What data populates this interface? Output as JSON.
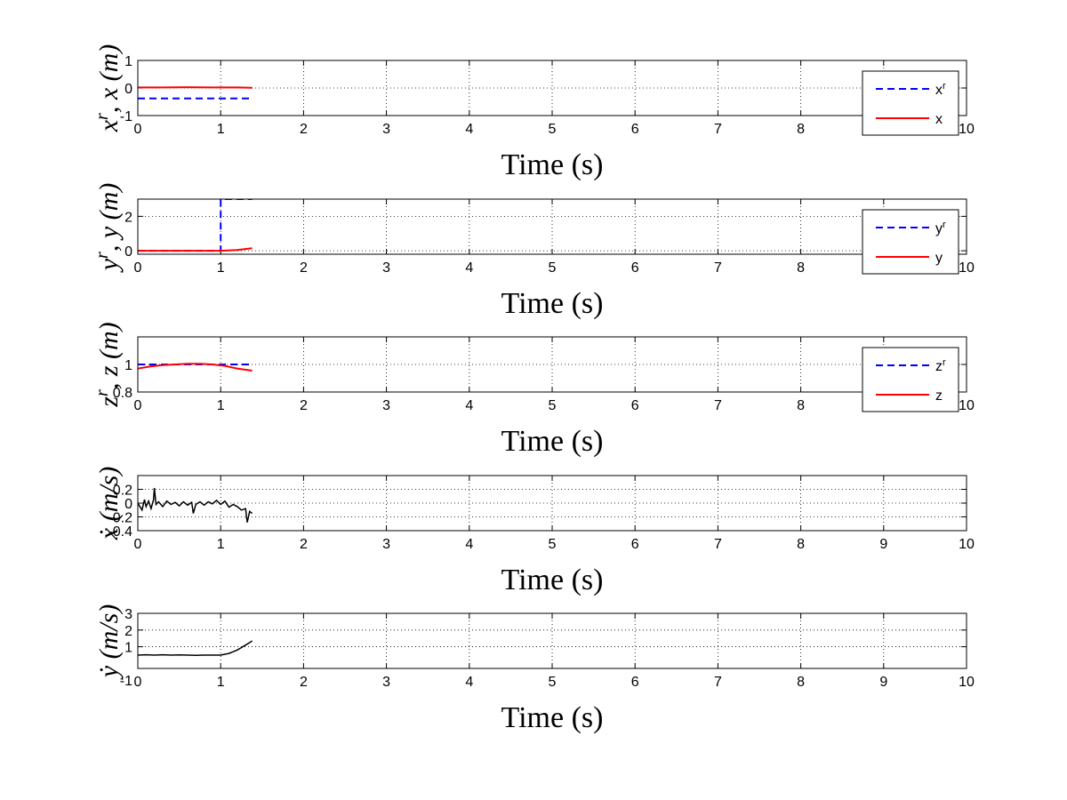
{
  "chart_data": [
    {
      "type": "line",
      "xlabel": "Time (s)",
      "ylabel": "x^r, x (m)",
      "xlim": [
        0,
        10
      ],
      "ylim": [
        -1,
        1
      ],
      "xticks": [
        "0",
        "1",
        "2",
        "3",
        "4",
        "5",
        "6",
        "7",
        "8",
        "9",
        "10"
      ],
      "yticks": [
        "-1",
        "0",
        "1"
      ],
      "grid": true,
      "legend": "top-right",
      "series": [
        {
          "name": "x^r",
          "color": "#0000ff",
          "dash": "dashed",
          "x": [
            0,
            1.38
          ],
          "y": [
            -0.38,
            -0.38
          ]
        },
        {
          "name": "x",
          "color": "#ff0000",
          "dash": "solid",
          "x": [
            0,
            0.3,
            0.6,
            0.9,
            1.2,
            1.38
          ],
          "y": [
            0.02,
            0.02,
            0.03,
            0.02,
            0.02,
            0.01
          ]
        }
      ]
    },
    {
      "type": "line",
      "xlabel": "Time (s)",
      "ylabel": "y^r, y (m)",
      "xlim": [
        0,
        10
      ],
      "ylim": [
        -0.2,
        3
      ],
      "xticks": [
        "0",
        "1",
        "2",
        "3",
        "4",
        "5",
        "6",
        "7",
        "8",
        "9",
        "10"
      ],
      "yticks": [
        "0",
        "2"
      ],
      "grid": true,
      "legend": "top-right",
      "series": [
        {
          "name": "y^r",
          "color": "#0000ff",
          "dash": "dashed",
          "x": [
            0,
            1.0,
            1.0,
            1.38
          ],
          "y": [
            0,
            0,
            3,
            3
          ]
        },
        {
          "name": "y",
          "color": "#ff0000",
          "dash": "solid",
          "x": [
            0,
            0.5,
            1.0,
            1.2,
            1.38
          ],
          "y": [
            0,
            0,
            0,
            0.05,
            0.15
          ]
        }
      ]
    },
    {
      "type": "line",
      "xlabel": "Time (s)",
      "ylabel": "z^r, z (m)",
      "xlim": [
        0,
        10
      ],
      "ylim": [
        0.8,
        1.2
      ],
      "xticks": [
        "0",
        "1",
        "2",
        "3",
        "4",
        "5",
        "6",
        "7",
        "8",
        "9",
        "10"
      ],
      "yticks": [
        "0.8",
        "1"
      ],
      "grid": true,
      "legend": "top-right",
      "series": [
        {
          "name": "z^r",
          "color": "#0000ff",
          "dash": "dashed",
          "x": [
            0,
            1.38
          ],
          "y": [
            1.0,
            1.0
          ]
        },
        {
          "name": "z",
          "color": "#ff0000",
          "dash": "solid",
          "x": [
            0,
            0.15,
            0.3,
            0.45,
            0.6,
            0.75,
            0.9,
            1.05,
            1.2,
            1.38
          ],
          "y": [
            0.97,
            0.985,
            0.995,
            1.0,
            1.005,
            1.005,
            1.0,
            0.99,
            0.97,
            0.955
          ]
        }
      ]
    },
    {
      "type": "line",
      "xlabel": "Time (s)",
      "ylabel": "ẋ (m/s)",
      "xlim": [
        0,
        10
      ],
      "ylim": [
        -0.4,
        0.4
      ],
      "xticks": [
        "0",
        "1",
        "2",
        "3",
        "4",
        "5",
        "6",
        "7",
        "8",
        "9",
        "10"
      ],
      "yticks": [
        "-0.4",
        "-0.2",
        "0",
        "0.2"
      ],
      "grid": true,
      "series": [
        {
          "name": "",
          "color": "#000000",
          "dash": "solid",
          "x": [
            0,
            0.05,
            0.08,
            0.1,
            0.13,
            0.16,
            0.19,
            0.2,
            0.22,
            0.25,
            0.3,
            0.35,
            0.4,
            0.45,
            0.5,
            0.55,
            0.6,
            0.65,
            0.67,
            0.7,
            0.75,
            0.8,
            0.85,
            0.9,
            0.95,
            1.0,
            1.05,
            1.1,
            1.15,
            1.2,
            1.25,
            1.3,
            1.32,
            1.35,
            1.38
          ],
          "y": [
            0.0,
            -0.1,
            0.05,
            -0.05,
            0.03,
            -0.08,
            0.05,
            0.22,
            -0.02,
            0.02,
            -0.05,
            0.03,
            -0.02,
            0.01,
            -0.04,
            0.02,
            -0.03,
            0.01,
            -0.15,
            -0.02,
            0.02,
            -0.03,
            0.02,
            -0.01,
            0.04,
            -0.02,
            0.03,
            -0.06,
            -0.02,
            -0.05,
            -0.1,
            -0.08,
            -0.28,
            -0.12,
            -0.15
          ]
        }
      ]
    },
    {
      "type": "line",
      "xlabel": "Time (s)",
      "ylabel": "ẏ (m/s)",
      "xlim": [
        0,
        10
      ],
      "ylim": [
        -0.3,
        3
      ],
      "xticks": [
        "0",
        "1",
        "2",
        "3",
        "4",
        "5",
        "6",
        "7",
        "8",
        "9",
        "10"
      ],
      "yticks": [
        "-1",
        "1",
        "2",
        "3"
      ],
      "grid": true,
      "series": [
        {
          "name": "",
          "color": "#000000",
          "dash": "solid",
          "x": [
            0,
            0.1,
            0.2,
            0.3,
            0.4,
            0.5,
            0.6,
            0.7,
            0.8,
            0.9,
            1.0,
            1.05,
            1.1,
            1.15,
            1.2,
            1.25,
            1.3,
            1.35,
            1.38
          ],
          "y": [
            0.5,
            0.52,
            0.5,
            0.52,
            0.5,
            0.51,
            0.5,
            0.49,
            0.5,
            0.5,
            0.5,
            0.55,
            0.6,
            0.7,
            0.8,
            0.95,
            1.1,
            1.25,
            1.35
          ]
        }
      ]
    }
  ]
}
